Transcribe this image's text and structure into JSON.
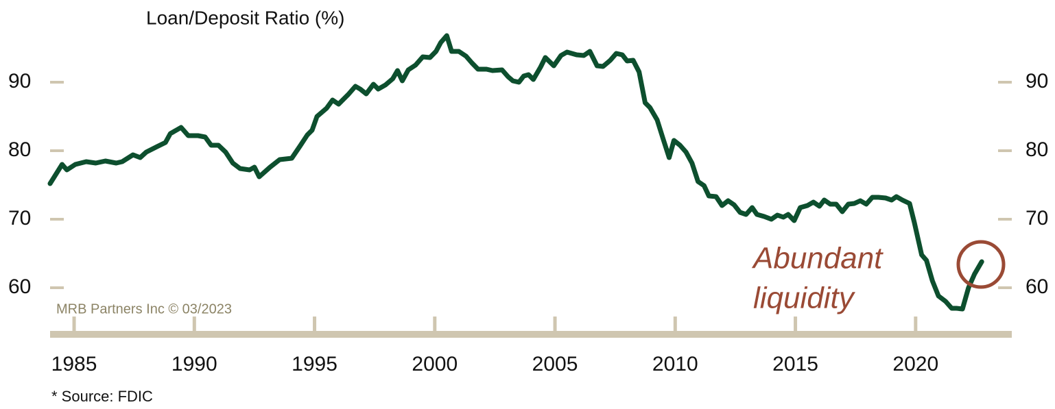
{
  "chart_data": {
    "type": "line",
    "title": "Loan/Deposit Ratio (%)",
    "credit": "MRB Partners Inc © 03/2023",
    "source": "* Source: FDIC",
    "annotation": [
      "Abundant",
      "liquidity"
    ],
    "color": "#0d4f2e",
    "annotation_color": "#9a4a35",
    "xlim": [
      1984,
      2024
    ],
    "ylim": [
      53.2,
      100
    ],
    "y2lim": [
      53.2,
      100
    ],
    "xticks": [
      1985,
      1990,
      1995,
      2000,
      2005,
      2010,
      2015,
      2020
    ],
    "yticks": [
      60,
      70,
      80,
      90
    ],
    "y2ticks": [
      60,
      70,
      80,
      90
    ],
    "x": [
      1984.0,
      1984.5,
      1984.7,
      1985.05,
      1985.5,
      1985.9,
      1986.3,
      1986.75,
      1987.0,
      1987.45,
      1987.75,
      1988.0,
      1988.45,
      1988.8,
      1989.0,
      1989.45,
      1989.75,
      1990.15,
      1990.45,
      1990.7,
      1991.0,
      1991.3,
      1991.6,
      1991.9,
      1992.3,
      1992.5,
      1992.7,
      1993.15,
      1993.55,
      1994.05,
      1994.4,
      1994.7,
      1994.9,
      1995.1,
      1995.5,
      1995.75,
      1996.0,
      1996.4,
      1996.7,
      1996.9,
      1997.15,
      1997.45,
      1997.65,
      1997.95,
      1998.25,
      1998.45,
      1998.65,
      1998.9,
      1999.2,
      1999.5,
      1999.8,
      2000.05,
      2000.25,
      2000.5,
      2000.7,
      2001.0,
      2001.3,
      2001.55,
      2001.8,
      2002.15,
      2002.4,
      2002.8,
      2003.05,
      2003.25,
      2003.5,
      2003.7,
      2003.9,
      2004.1,
      2004.4,
      2004.6,
      2004.95,
      2005.25,
      2005.5,
      2005.9,
      2006.2,
      2006.45,
      2006.75,
      2007.0,
      2007.3,
      2007.55,
      2007.8,
      2008.0,
      2008.25,
      2008.5,
      2008.75,
      2008.95,
      2009.25,
      2009.5,
      2009.75,
      2009.95,
      2010.2,
      2010.45,
      2010.7,
      2010.95,
      2011.2,
      2011.4,
      2011.7,
      2011.95,
      2012.2,
      2012.45,
      2012.7,
      2012.95,
      2013.2,
      2013.4,
      2013.7,
      2014.0,
      2014.25,
      2014.5,
      2014.7,
      2014.95,
      2015.2,
      2015.5,
      2015.75,
      2016.0,
      2016.2,
      2016.45,
      2016.7,
      2016.95,
      2017.2,
      2017.45,
      2017.7,
      2017.95,
      2018.2,
      2018.45,
      2018.75,
      2019.0,
      2019.2,
      2019.45,
      2019.75,
      2019.95,
      2020.25,
      2020.45,
      2020.7,
      2020.95,
      2021.25,
      2021.5,
      2021.7,
      2021.95,
      2022.2,
      2022.45,
      2022.75
    ],
    "values": [
      75.2,
      78,
      77.2,
      78,
      78.4,
      78.2,
      78.5,
      78.2,
      78.4,
      79.4,
      79,
      79.8,
      80.6,
      81.2,
      82.5,
      83.4,
      82.2,
      82.2,
      82,
      80.8,
      80.8,
      79.8,
      78.2,
      77.4,
      77.2,
      77.6,
      76.2,
      77.6,
      78.7,
      78.9,
      80.7,
      82.3,
      83,
      85,
      86.2,
      87.4,
      86.8,
      88.2,
      89.4,
      89,
      88.3,
      89.7,
      89,
      89.6,
      90.5,
      91.7,
      90.2,
      91.8,
      92.5,
      93.7,
      93.6,
      94.5,
      95.8,
      96.8,
      94.5,
      94.5,
      93.8,
      92.8,
      91.9,
      91.9,
      91.7,
      91.8,
      90.8,
      90.2,
      90,
      90.9,
      91.1,
      90.4,
      92.2,
      93.6,
      92.4,
      93.9,
      94.4,
      94,
      93.9,
      94.5,
      92.4,
      92.3,
      93.2,
      94.2,
      94,
      93.1,
      93.2,
      91.5,
      87,
      86.3,
      84.5,
      81.7,
      79,
      81.5,
      80.8,
      79.8,
      78.2,
      75.5,
      74.9,
      73.4,
      73.3,
      72,
      72.7,
      72.1,
      71,
      70.7,
      71.7,
      70.7,
      70.4,
      70,
      70.6,
      70.3,
      70.7,
      69.8,
      71.7,
      72,
      72.5,
      71.9,
      72.8,
      72.2,
      72.2,
      71.1,
      72.2,
      72.3,
      72.7,
      72.2,
      73.2,
      73.2,
      73.1,
      72.8,
      73.3,
      72.8,
      72.3,
      69.5,
      64.8,
      64,
      61,
      58.8,
      58,
      57,
      57,
      56.9,
      60,
      62,
      63.8
    ]
  }
}
